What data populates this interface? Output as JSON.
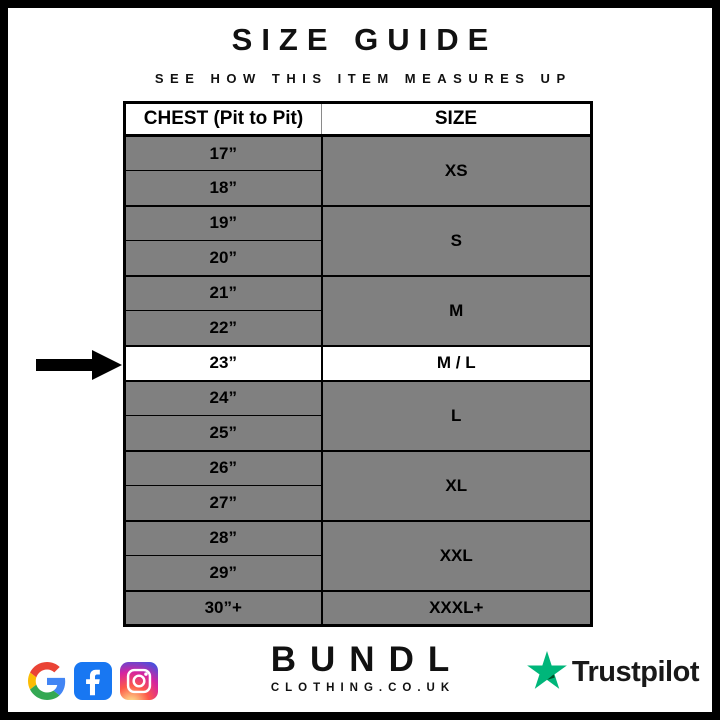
{
  "header": {
    "title": "SIZE GUIDE",
    "subtitle": "SEE HOW THIS ITEM MEASURES UP"
  },
  "table": {
    "columns": [
      "CHEST (Pit to Pit)",
      "SIZE"
    ],
    "groups": [
      {
        "size": "XS",
        "measurements": [
          "17”",
          "18”"
        ],
        "highlighted": false
      },
      {
        "size": "S",
        "measurements": [
          "19”",
          "20”"
        ],
        "highlighted": false
      },
      {
        "size": "M",
        "measurements": [
          "21”",
          "22”"
        ],
        "highlighted": false
      },
      {
        "size": "M / L",
        "measurements": [
          "23”"
        ],
        "highlighted": true
      },
      {
        "size": "L",
        "measurements": [
          "24”",
          "25”"
        ],
        "highlighted": false
      },
      {
        "size": "XL",
        "measurements": [
          "26”",
          "27”"
        ],
        "highlighted": false
      },
      {
        "size": "XXL",
        "measurements": [
          "28”",
          "29”"
        ],
        "highlighted": false
      },
      {
        "size": "XXXL+",
        "measurements": [
          "30”+"
        ],
        "highlighted": false
      }
    ],
    "colors": {
      "row_background": "#808080",
      "highlight_background": "#FFFFFF",
      "border": "#000000"
    }
  },
  "footer": {
    "brand": {
      "name": "BUNDL",
      "domain": "CLOTHING.CO.UK"
    },
    "social_icons": [
      "google-icon",
      "facebook-icon",
      "instagram-icon"
    ],
    "social_colors": {
      "google_blue": "#4285F4",
      "google_red": "#EA4335",
      "google_yellow": "#FBBC05",
      "google_green": "#34A853",
      "facebook_blue": "#1877F2"
    },
    "trustpilot": {
      "label": "Trustpilot",
      "star_color": "#00B67A",
      "star_shadow_color": "#005128",
      "text_color": "#191919"
    }
  }
}
